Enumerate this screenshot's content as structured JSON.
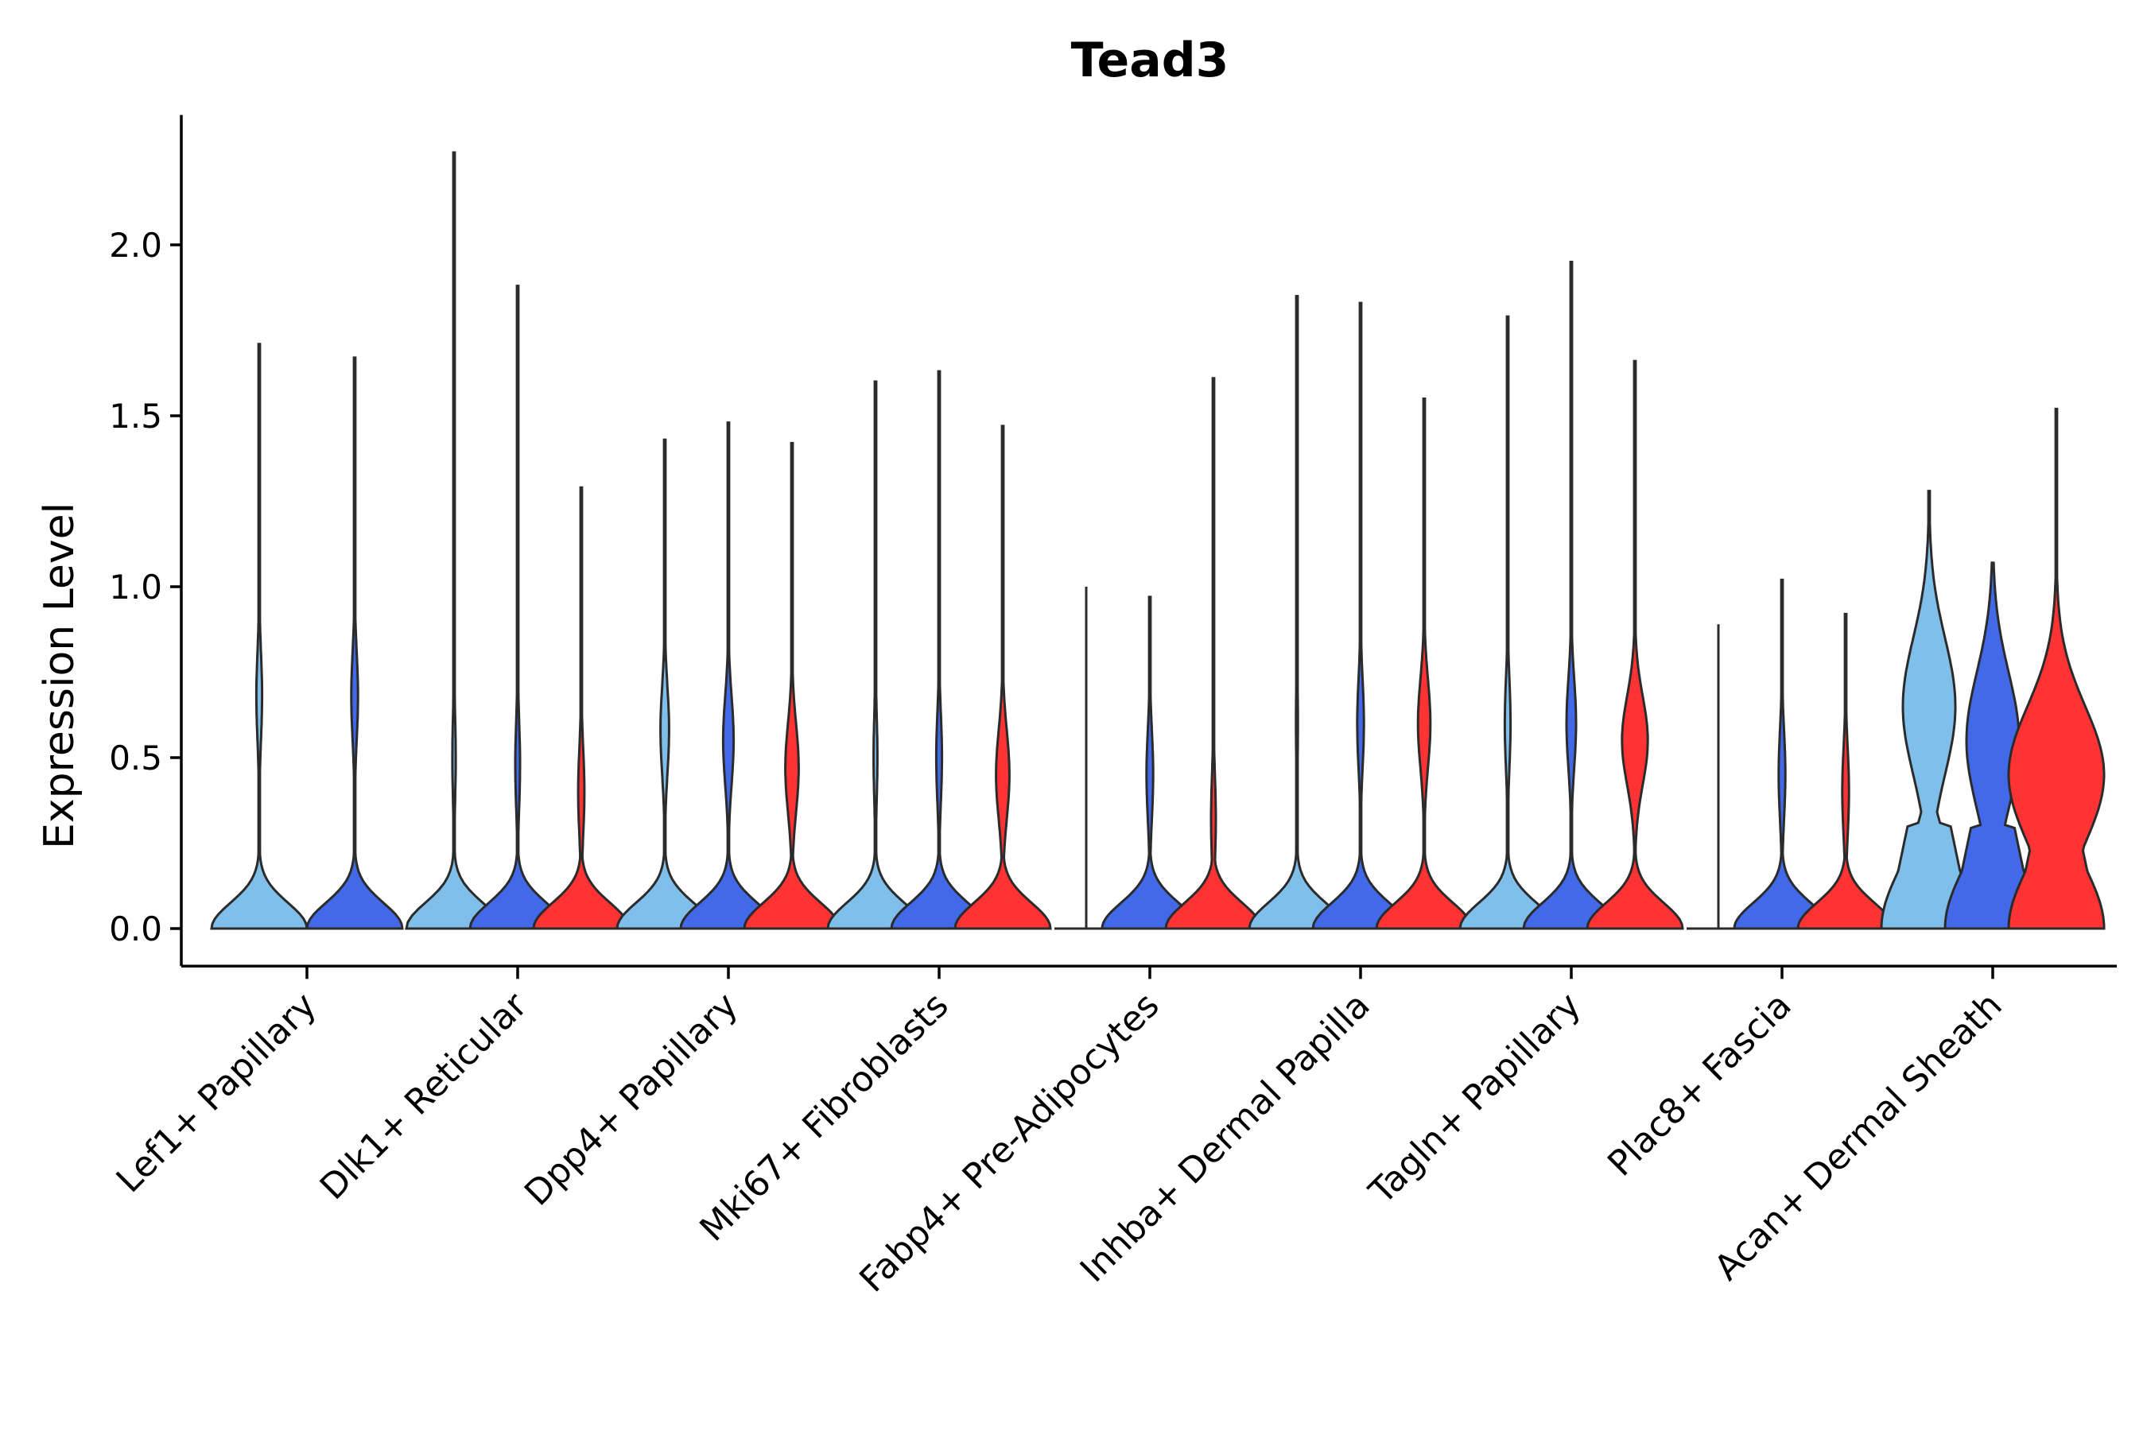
{
  "chart_data": {
    "type": "violin",
    "title": "Tead3",
    "xlabel": "",
    "ylabel": "Expression Level",
    "ylim": [
      -0.11,
      2.38
    ],
    "yticks": [
      0.0,
      0.5,
      1.0,
      1.5,
      2.0
    ],
    "ytick_labels": [
      "0.0",
      "0.5",
      "1.0",
      "1.5",
      "2.0"
    ],
    "series_colors": [
      "#7fbfea",
      "#4169e8",
      "#ff3333"
    ],
    "categories": [
      "Lef1+ Papillary",
      "Dlk1+ Reticular",
      "Dpp4+ Papillary",
      "Mki67+ Fibroblasts",
      "Fabp4+ Pre-Adipocytes",
      "Inhba+ Dermal Papilla",
      "Tagln+ Papillary",
      "Plac8+ Fascia",
      "Acan+ Dermal Sheath"
    ],
    "groups": [
      {
        "category": "Lef1+ Papillary",
        "violins": [
          {
            "series": 0,
            "max": 1.71,
            "peak": 0.68,
            "peak_w": 0.06,
            "shape": "zero"
          },
          {
            "series": 1,
            "max": 1.67,
            "peak": 0.68,
            "peak_w": 0.07,
            "shape": "zero"
          }
        ]
      },
      {
        "category": "Dlk1+ Reticular",
        "violins": [
          {
            "series": 0,
            "max": 2.27,
            "peak": 0.5,
            "peak_w": 0.035,
            "shape": "zero"
          },
          {
            "series": 1,
            "max": 1.88,
            "peak": 0.48,
            "peak_w": 0.05,
            "shape": "zero"
          },
          {
            "series": 2,
            "max": 1.29,
            "peak": 0.4,
            "peak_w": 0.065,
            "shape": "zero"
          }
        ]
      },
      {
        "category": "Dpp4+ Papillary",
        "violins": [
          {
            "series": 0,
            "max": 1.43,
            "peak": 0.58,
            "peak_w": 0.09,
            "shape": "zero"
          },
          {
            "series": 1,
            "max": 1.48,
            "peak": 0.55,
            "peak_w": 0.11,
            "shape": "zero"
          },
          {
            "series": 2,
            "max": 1.42,
            "peak": 0.47,
            "peak_w": 0.14,
            "shape": "zero"
          }
        ]
      },
      {
        "category": "Mki67+ Fibroblasts",
        "violins": [
          {
            "series": 0,
            "max": 1.6,
            "peak": 0.5,
            "peak_w": 0.04,
            "shape": "zero"
          },
          {
            "series": 1,
            "max": 1.63,
            "peak": 0.5,
            "peak_w": 0.06,
            "shape": "zero"
          },
          {
            "series": 2,
            "max": 1.47,
            "peak": 0.45,
            "peak_w": 0.14,
            "shape": "zero"
          }
        ]
      },
      {
        "category": "Fabp4+ Pre-Adipocytes",
        "violins": [
          {
            "series": 0,
            "max": 1.0,
            "peak": 0.5,
            "peak_w": 0.0,
            "shape": "flat"
          },
          {
            "series": 1,
            "max": 0.97,
            "peak": 0.45,
            "peak_w": 0.07,
            "shape": "zero"
          },
          {
            "series": 2,
            "max": 1.61,
            "peak": 0.32,
            "peak_w": 0.05,
            "shape": "zero"
          }
        ]
      },
      {
        "category": "Inhba+ Dermal Papilla",
        "violins": [
          {
            "series": 0,
            "max": 1.85,
            "peak": 0.6,
            "peak_w": 0.02,
            "shape": "zero"
          },
          {
            "series": 1,
            "max": 1.83,
            "peak": 0.6,
            "peak_w": 0.07,
            "shape": "zero"
          },
          {
            "series": 2,
            "max": 1.55,
            "peak": 0.6,
            "peak_w": 0.13,
            "shape": "zero"
          }
        ]
      },
      {
        "category": "Tagln+ Papillary",
        "violins": [
          {
            "series": 0,
            "max": 1.79,
            "peak": 0.6,
            "peak_w": 0.06,
            "shape": "zero"
          },
          {
            "series": 1,
            "max": 1.95,
            "peak": 0.6,
            "peak_w": 0.1,
            "shape": "zero"
          },
          {
            "series": 2,
            "max": 1.66,
            "peak": 0.55,
            "peak_w": 0.27,
            "shape": "zero"
          }
        ]
      },
      {
        "category": "Plac8+ Fascia",
        "violins": [
          {
            "series": 0,
            "max": 0.89,
            "peak": 0.4,
            "peak_w": 0.0,
            "shape": "flat"
          },
          {
            "series": 1,
            "max": 1.02,
            "peak": 0.45,
            "peak_w": 0.07,
            "shape": "zero"
          },
          {
            "series": 2,
            "max": 0.92,
            "peak": 0.4,
            "peak_w": 0.07,
            "shape": "zero"
          }
        ]
      },
      {
        "category": "Acan+ Dermal Sheath",
        "violins": [
          {
            "series": 0,
            "max": 1.28,
            "peak": 0.65,
            "peak_w": 0.55,
            "shape": "wide"
          },
          {
            "series": 1,
            "max": 1.07,
            "peak": 0.55,
            "peak_w": 0.55,
            "shape": "wide"
          },
          {
            "series": 2,
            "max": 1.52,
            "peak": 0.45,
            "peak_w": 1.0,
            "shape": "wide"
          }
        ]
      }
    ]
  }
}
